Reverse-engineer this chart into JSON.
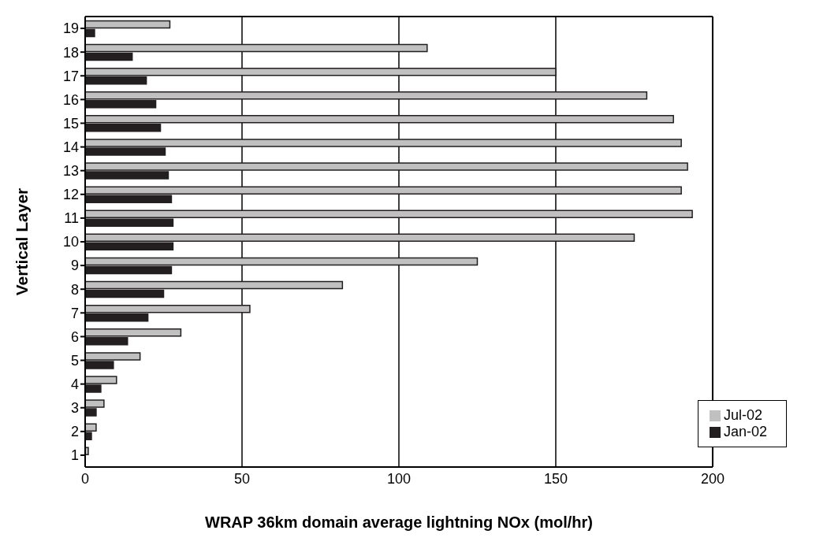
{
  "chart_data": {
    "type": "bar",
    "orientation": "horizontal",
    "xlabel": "WRAP 36km domain average lightning NOx (mol/hr)",
    "ylabel": "Vertical Layer",
    "categories": [
      "19",
      "18",
      "17",
      "16",
      "15",
      "14",
      "13",
      "12",
      "11",
      "10",
      "9",
      "8",
      "7",
      "6",
      "5",
      "4",
      "3",
      "2",
      "1"
    ],
    "series": [
      {
        "name": "Jul-02",
        "color": "#c0c0c0",
        "values": [
          27,
          109,
          150,
          179,
          187.5,
          190,
          192,
          190,
          193.5,
          175,
          125,
          82,
          52.5,
          30.5,
          17.5,
          10,
          6,
          3.5,
          1
        ]
      },
      {
        "name": "Jan-02",
        "color": "#231f20",
        "values": [
          3,
          15,
          19.5,
          22.5,
          24,
          25.5,
          26.5,
          27.5,
          28,
          28,
          27.5,
          25,
          20,
          13.5,
          9,
          5,
          3.5,
          2,
          null
        ]
      }
    ],
    "xlim": [
      0,
      200
    ],
    "xticks": [
      0,
      50,
      100,
      150,
      200
    ],
    "grid": "x",
    "legend": "bottom right"
  }
}
